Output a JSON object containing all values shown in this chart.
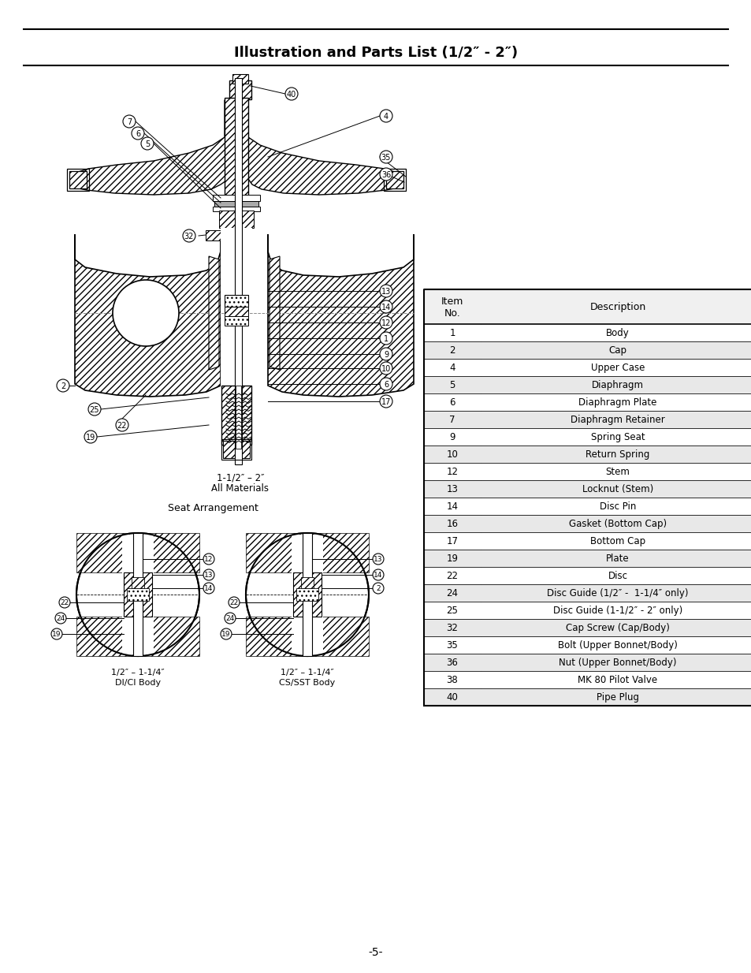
{
  "title": "Illustration and Parts List (1/2″ - 2″)",
  "page_number": "-5-",
  "table_rows": [
    [
      "1",
      "Body"
    ],
    [
      "2",
      "Cap"
    ],
    [
      "4",
      "Upper Case"
    ],
    [
      "5",
      "Diaphragm"
    ],
    [
      "6",
      "Diaphragm Plate"
    ],
    [
      "7",
      "Diaphragm Retainer"
    ],
    [
      "9",
      "Spring Seat"
    ],
    [
      "10",
      "Return Spring"
    ],
    [
      "12",
      "Stem"
    ],
    [
      "13",
      "Locknut (Stem)"
    ],
    [
      "14",
      "Disc Pin"
    ],
    [
      "16",
      "Gasket (Bottom Cap)"
    ],
    [
      "17",
      "Bottom Cap"
    ],
    [
      "19",
      "Plate"
    ],
    [
      "22",
      "Disc"
    ],
    [
      "24",
      "Disc Guide (1/2″ -  1-1/4″ only)"
    ],
    [
      "25",
      "Disc Guide (1-1/2″ - 2″ only)"
    ],
    [
      "32",
      "Cap Screw (Cap/Body)"
    ],
    [
      "35",
      "Bolt (Upper Bonnet/Body)"
    ],
    [
      "36",
      "Nut (Upper Bonnet/Body)"
    ],
    [
      "38",
      "MK 80 Pilot Valve"
    ],
    [
      "40",
      "Pipe Plug"
    ]
  ],
  "label_main_1": "1-1/2″ – 2″",
  "label_main_2": "All Materials",
  "label_seat": "Seat Arrangement",
  "label_left_1": "1/2″ – 1-1/4″",
  "label_left_2": "DI/CI Body",
  "label_right_1": "1/2″ – 1-1/4″",
  "label_right_2": "CS/SST Body",
  "bg_color": "#ffffff"
}
